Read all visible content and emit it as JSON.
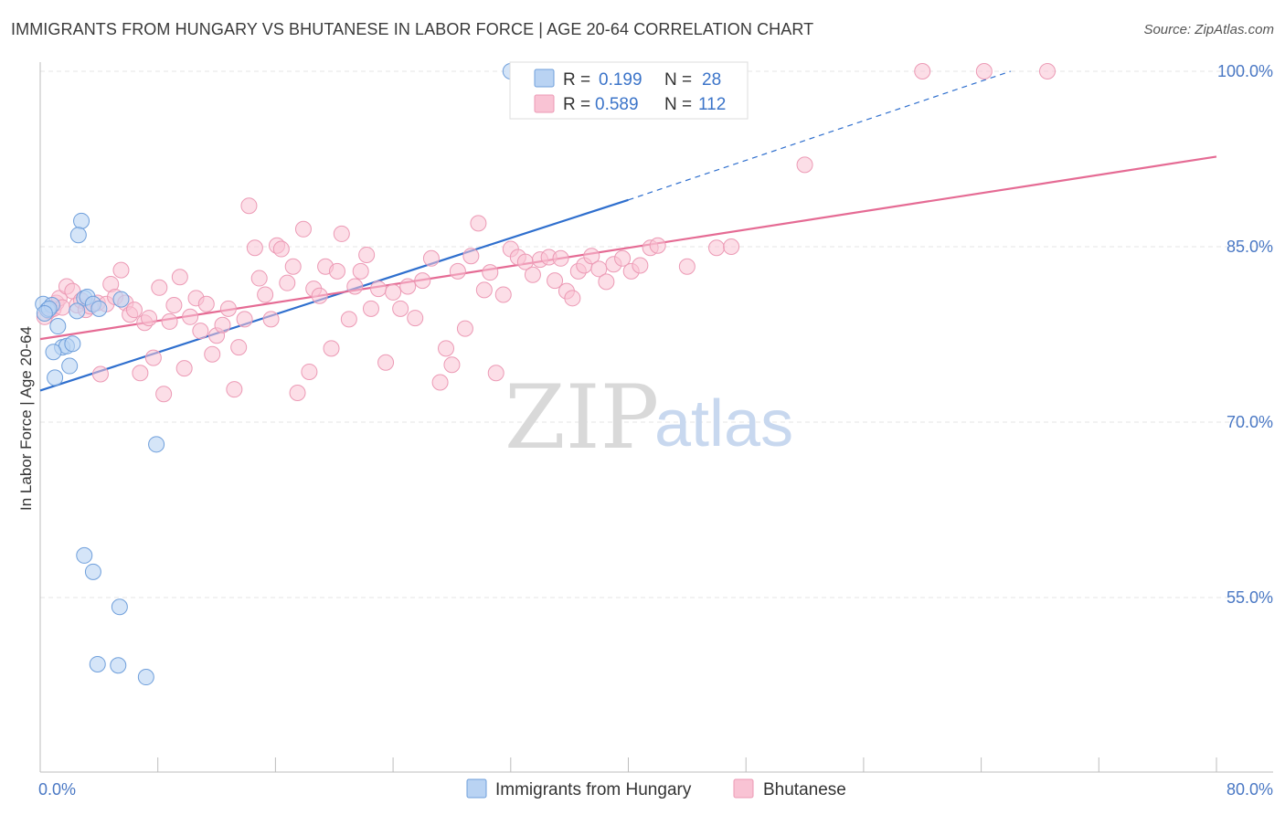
{
  "title": "IMMIGRANTS FROM HUNGARY VS BHUTANESE IN LABOR FORCE | AGE 20-64 CORRELATION CHART",
  "source": "Source: ZipAtlas.com",
  "watermark": {
    "zip": "ZIP",
    "atlas": "atlas"
  },
  "legend": {
    "r_label": "R =",
    "n_label": "N =",
    "rows": [
      {
        "r": "0.199",
        "n": "28"
      },
      {
        "r": "0.589",
        "n": "112"
      }
    ]
  },
  "colors": {
    "blue_fill": "#b9d3f3",
    "blue_stroke": "#6f9fdb",
    "blue_line": "#2f6fce",
    "pink_fill": "#f9c3d4",
    "pink_stroke": "#ec9ab5",
    "pink_line": "#e56b94",
    "grid": "#e6e6e6",
    "tick_text": "#4a78c4"
  },
  "chart_data": {
    "type": "scatter",
    "title": "IMMIGRANTS FROM HUNGARY VS BHUTANESE IN LABOR FORCE | AGE 20-64 CORRELATION CHART",
    "xlabel": "",
    "ylabel": "In Labor Force | Age 20-64",
    "xlim": [
      0,
      80
    ],
    "ylim": [
      40,
      101
    ],
    "x_tick_labels": [
      "0.0%",
      "80.0%"
    ],
    "y_ticks": [
      55,
      70,
      85,
      100
    ],
    "y_tick_labels": [
      "55.0%",
      "70.0%",
      "85.0%",
      "100.0%"
    ],
    "grid": true,
    "legend_position": "bottom",
    "series": [
      {
        "name": "Immigrants from Hungary",
        "r": 0.199,
        "n": 28,
        "trend": {
          "x1": 0,
          "y1": 72.7,
          "x2": 40,
          "y2": 89.0,
          "dash_to_x": 66,
          "dash_to_y": 100.0
        },
        "points": [
          [
            0.2,
            80.1
          ],
          [
            0.5,
            79.6
          ],
          [
            0.8,
            80.0
          ],
          [
            0.6,
            79.7
          ],
          [
            0.3,
            79.3
          ],
          [
            1.2,
            78.2
          ],
          [
            1.5,
            76.4
          ],
          [
            1.8,
            76.5
          ],
          [
            2.2,
            76.7
          ],
          [
            2.0,
            74.8
          ],
          [
            1.0,
            73.8
          ],
          [
            0.9,
            76.0
          ],
          [
            2.8,
            87.2
          ],
          [
            2.6,
            86.0
          ],
          [
            3.0,
            80.6
          ],
          [
            3.2,
            80.7
          ],
          [
            3.6,
            80.1
          ],
          [
            5.5,
            80.5
          ],
          [
            4.0,
            79.7
          ],
          [
            7.9,
            68.1
          ],
          [
            3.0,
            58.6
          ],
          [
            3.6,
            57.2
          ],
          [
            5.4,
            54.2
          ],
          [
            3.9,
            49.3
          ],
          [
            5.3,
            49.2
          ],
          [
            7.2,
            48.2
          ],
          [
            32.0,
            100.0
          ],
          [
            2.5,
            79.5
          ]
        ]
      },
      {
        "name": "Bhutanese",
        "r": 0.589,
        "n": 112,
        "trend": {
          "x1": 0,
          "y1": 77.1,
          "x2": 80,
          "y2": 92.7
        },
        "points": [
          [
            0.3,
            79.0
          ],
          [
            0.6,
            79.5
          ],
          [
            0.9,
            79.7
          ],
          [
            1.1,
            80.2
          ],
          [
            1.3,
            80.6
          ],
          [
            1.5,
            79.8
          ],
          [
            1.8,
            81.6
          ],
          [
            2.2,
            81.2
          ],
          [
            2.5,
            80.0
          ],
          [
            2.8,
            80.4
          ],
          [
            3.1,
            79.6
          ],
          [
            3.4,
            79.9
          ],
          [
            3.9,
            80.2
          ],
          [
            4.1,
            74.1
          ],
          [
            4.5,
            80.1
          ],
          [
            4.8,
            81.8
          ],
          [
            5.1,
            80.7
          ],
          [
            5.5,
            83.0
          ],
          [
            5.8,
            80.2
          ],
          [
            6.1,
            79.2
          ],
          [
            6.4,
            79.6
          ],
          [
            6.8,
            74.2
          ],
          [
            7.1,
            78.5
          ],
          [
            7.4,
            78.9
          ],
          [
            7.7,
            75.5
          ],
          [
            8.1,
            81.5
          ],
          [
            8.4,
            72.4
          ],
          [
            8.8,
            78.6
          ],
          [
            9.1,
            80.0
          ],
          [
            9.5,
            82.4
          ],
          [
            9.8,
            74.6
          ],
          [
            10.2,
            79.0
          ],
          [
            10.6,
            80.6
          ],
          [
            10.9,
            77.8
          ],
          [
            11.3,
            80.1
          ],
          [
            11.7,
            75.8
          ],
          [
            12.0,
            77.4
          ],
          [
            12.4,
            78.3
          ],
          [
            12.8,
            79.7
          ],
          [
            13.2,
            72.8
          ],
          [
            13.5,
            76.4
          ],
          [
            13.9,
            78.8
          ],
          [
            14.2,
            88.5
          ],
          [
            14.6,
            84.9
          ],
          [
            14.9,
            82.3
          ],
          [
            15.3,
            80.9
          ],
          [
            15.7,
            78.8
          ],
          [
            16.1,
            85.1
          ],
          [
            16.4,
            84.8
          ],
          [
            16.8,
            81.9
          ],
          [
            17.2,
            83.3
          ],
          [
            17.5,
            72.5
          ],
          [
            17.9,
            86.5
          ],
          [
            18.3,
            74.3
          ],
          [
            18.6,
            81.4
          ],
          [
            19.0,
            80.8
          ],
          [
            19.4,
            83.3
          ],
          [
            19.8,
            76.3
          ],
          [
            20.2,
            82.9
          ],
          [
            20.5,
            86.1
          ],
          [
            21.0,
            78.8
          ],
          [
            21.4,
            81.6
          ],
          [
            21.8,
            82.9
          ],
          [
            22.2,
            84.3
          ],
          [
            22.5,
            79.7
          ],
          [
            23.0,
            81.4
          ],
          [
            23.5,
            75.1
          ],
          [
            24.0,
            81.1
          ],
          [
            24.5,
            79.7
          ],
          [
            25.0,
            81.6
          ],
          [
            25.5,
            78.9
          ],
          [
            26.0,
            82.1
          ],
          [
            26.6,
            84.0
          ],
          [
            27.2,
            73.4
          ],
          [
            27.6,
            76.3
          ],
          [
            28.0,
            74.9
          ],
          [
            28.4,
            82.9
          ],
          [
            28.9,
            78.0
          ],
          [
            29.3,
            84.2
          ],
          [
            29.8,
            87.0
          ],
          [
            30.2,
            81.3
          ],
          [
            30.6,
            82.8
          ],
          [
            31.0,
            74.2
          ],
          [
            31.5,
            80.9
          ],
          [
            32.0,
            84.8
          ],
          [
            32.5,
            84.1
          ],
          [
            33.0,
            83.7
          ],
          [
            33.5,
            82.6
          ],
          [
            34.0,
            83.9
          ],
          [
            34.6,
            84.1
          ],
          [
            35.0,
            82.1
          ],
          [
            35.4,
            84.0
          ],
          [
            35.8,
            81.2
          ],
          [
            36.2,
            80.6
          ],
          [
            36.6,
            82.9
          ],
          [
            37.0,
            83.4
          ],
          [
            37.5,
            84.2
          ],
          [
            38.0,
            83.1
          ],
          [
            38.5,
            82.0
          ],
          [
            39.0,
            83.5
          ],
          [
            39.6,
            84.0
          ],
          [
            40.2,
            82.9
          ],
          [
            40.8,
            83.4
          ],
          [
            41.5,
            84.9
          ],
          [
            42.0,
            85.1
          ],
          [
            44.0,
            83.3
          ],
          [
            46.0,
            84.9
          ],
          [
            47.0,
            85.0
          ],
          [
            52.0,
            92.0
          ],
          [
            60.0,
            100.0
          ],
          [
            64.2,
            100.0
          ],
          [
            68.5,
            100.0
          ]
        ]
      }
    ]
  },
  "bottom_legend": [
    {
      "label": "Immigrants from Hungary"
    },
    {
      "label": "Bhutanese"
    }
  ]
}
